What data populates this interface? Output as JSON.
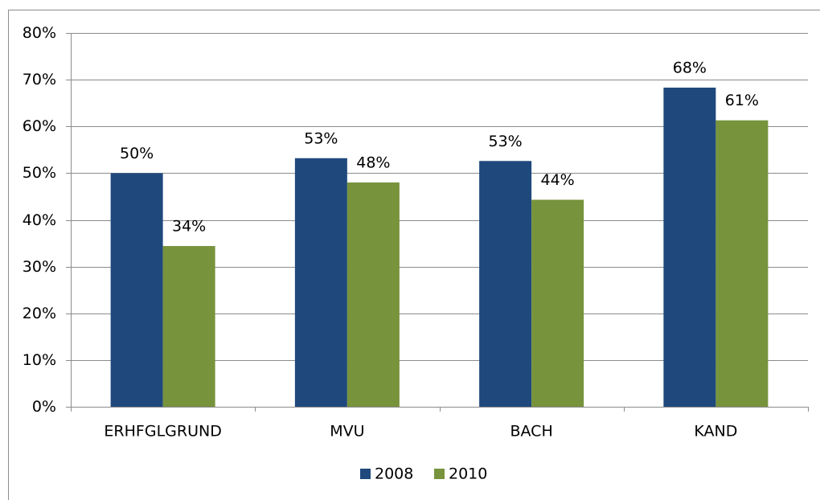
{
  "chart_data": {
    "type": "bar",
    "categories": [
      "ERHFGLGRUND",
      "MVU",
      "BACH",
      "KAND"
    ],
    "series": [
      {
        "name": "2008",
        "color": "#1f497d",
        "values": [
          50,
          53.2,
          52.6,
          68.3
        ],
        "value_labels": [
          "50%",
          "53%",
          "53%",
          "68%"
        ]
      },
      {
        "name": "2010",
        "color": "#77933c",
        "values": [
          34.4,
          48,
          44.3,
          61.3
        ],
        "value_labels": [
          "34%",
          "48%",
          "44%",
          "61%"
        ]
      }
    ],
    "ylim": [
      0,
      80
    ],
    "yticks": [
      {
        "value": 0,
        "label": "0%"
      },
      {
        "value": 10,
        "label": "10%"
      },
      {
        "value": 20,
        "label": "20%"
      },
      {
        "value": 30,
        "label": "30%"
      },
      {
        "value": 40,
        "label": "40%"
      },
      {
        "value": 50,
        "label": "50%"
      },
      {
        "value": 60,
        "label": "60%"
      },
      {
        "value": 70,
        "label": "70%"
      },
      {
        "value": 80,
        "label": "80%"
      }
    ],
    "grid": true,
    "legend": "bottom"
  }
}
